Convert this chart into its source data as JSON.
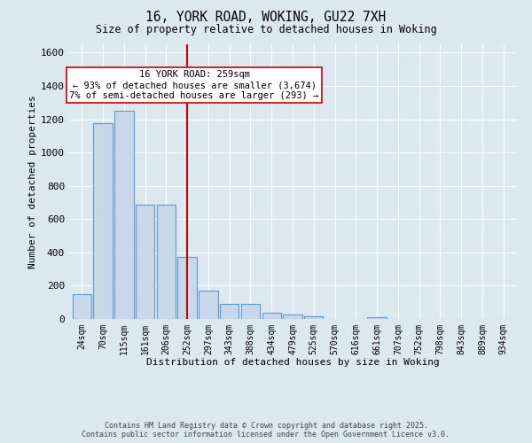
{
  "title_line1": "16, YORK ROAD, WOKING, GU22 7XH",
  "title_line2": "Size of property relative to detached houses in Woking",
  "xlabel": "Distribution of detached houses by size in Woking",
  "ylabel": "Number of detached properties",
  "bin_labels": [
    "24sqm",
    "70sqm",
    "115sqm",
    "161sqm",
    "206sqm",
    "252sqm",
    "297sqm",
    "343sqm",
    "388sqm",
    "434sqm",
    "479sqm",
    "525sqm",
    "570sqm",
    "616sqm",
    "661sqm",
    "707sqm",
    "752sqm",
    "798sqm",
    "843sqm",
    "889sqm",
    "934sqm"
  ],
  "bar_heights": [
    150,
    1175,
    1250,
    685,
    685,
    375,
    170,
    90,
    90,
    35,
    25,
    18,
    0,
    0,
    12,
    0,
    0,
    0,
    0,
    0,
    0
  ],
  "bar_color": "#c8d8e8",
  "bar_edge_color": "#5b9bd5",
  "vline_x_index": 5,
  "vline_color": "#cc0000",
  "annotation_text": "16 YORK ROAD: 259sqm\n← 93% of detached houses are smaller (3,674)\n7% of semi-detached houses are larger (293) →",
  "annotation_box_color": "#ffffff",
  "annotation_box_edge": "#cc0000",
  "ylim": [
    0,
    1650
  ],
  "yticks": [
    0,
    200,
    400,
    600,
    800,
    1000,
    1200,
    1400,
    1600
  ],
  "footer_line1": "Contains HM Land Registry data © Crown copyright and database right 2025.",
  "footer_line2": "Contains public sector information licensed under the Open Government Licence v3.0.",
  "bg_color": "#dce8f0",
  "plot_bg_color": "#dce8f0",
  "grid_color": "#ffffff"
}
